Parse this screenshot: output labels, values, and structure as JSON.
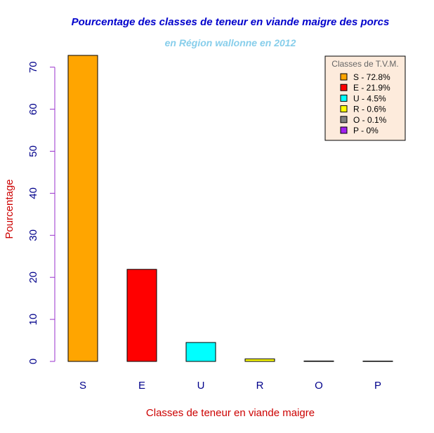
{
  "colors": {
    "title": "#0000cc",
    "subtitle": "#87ceeb",
    "axis_label": "#cc0000",
    "tick_label": "#00008b",
    "y_axis_line": "#9932cc",
    "legend_bg": "#fdebdc",
    "legend_title": "#666666",
    "bar_border": "#000000"
  },
  "chart_data": {
    "type": "bar",
    "title": "Pourcentage des classes de teneur en viande maigre des porcs",
    "subtitle": "en Région wallonne en 2012",
    "xlabel": "Classes de teneur en viande maigre",
    "ylabel": "Pourcentage",
    "ylim": [
      0,
      73
    ],
    "yticks": [
      0,
      10,
      20,
      30,
      40,
      50,
      60,
      70
    ],
    "grid": false,
    "categories": [
      "S",
      "E",
      "U",
      "R",
      "O",
      "P"
    ],
    "values": [
      72.8,
      21.9,
      4.5,
      0.6,
      0.1,
      0
    ],
    "bar_colors": [
      "#ffa500",
      "#ff0000",
      "#00ffff",
      "#ffff00",
      "#808080",
      "#a020f0"
    ],
    "legend": {
      "title": "Classes de T.V.M.",
      "placement": "top-right",
      "entries": [
        {
          "label": "S - 72.8%",
          "color": "#ffa500"
        },
        {
          "label": "E - 21.9%",
          "color": "#ff0000"
        },
        {
          "label": "U - 4.5%",
          "color": "#00ffff"
        },
        {
          "label": "R - 0.6%",
          "color": "#ffff00"
        },
        {
          "label": "O - 0.1%",
          "color": "#808080"
        },
        {
          "label": "P - 0%",
          "color": "#a020f0"
        }
      ]
    }
  }
}
